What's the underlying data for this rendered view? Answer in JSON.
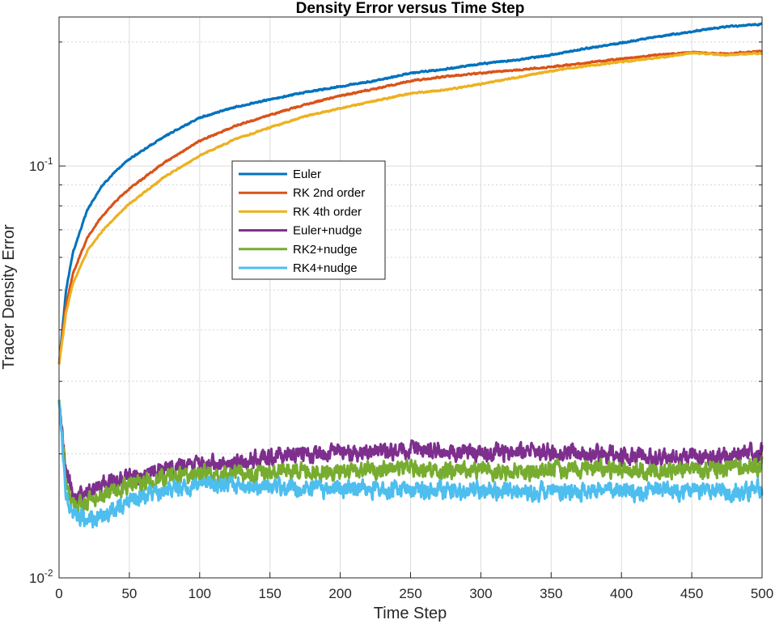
{
  "chart_data": {
    "type": "line",
    "title": "Density Error versus Time Step",
    "xlabel": "Time Step",
    "ylabel": "Tracer Density Error",
    "xlim": [
      0,
      500
    ],
    "ylim": [
      0.01,
      0.23
    ],
    "yscale": "log",
    "grid": true,
    "legend_position": "upper-left-center",
    "x_ticks": [
      "0",
      "50",
      "100",
      "150",
      "200",
      "250",
      "300",
      "350",
      "400",
      "450",
      "500"
    ],
    "y_ticks": [
      {
        "base": "10",
        "exp": "-2",
        "value": 0.01
      },
      {
        "base": "10",
        "exp": "-1",
        "value": 0.1
      }
    ],
    "x": [
      0,
      5,
      10,
      20,
      30,
      40,
      50,
      75,
      100,
      125,
      150,
      175,
      200,
      225,
      250,
      275,
      300,
      325,
      350,
      375,
      400,
      425,
      450,
      475,
      500
    ],
    "series": [
      {
        "name": "Euler",
        "color": "#0072BD",
        "noise": 0.006,
        "values": [
          0.033,
          0.05,
          0.062,
          0.078,
          0.089,
          0.097,
          0.104,
          0.118,
          0.131,
          0.139,
          0.145,
          0.151,
          0.156,
          0.161,
          0.168,
          0.172,
          0.177,
          0.181,
          0.186,
          0.193,
          0.199,
          0.206,
          0.212,
          0.218,
          0.221
        ]
      },
      {
        "name": "RK 2nd order",
        "color": "#D95319",
        "noise": 0.006,
        "values": [
          0.033,
          0.046,
          0.055,
          0.067,
          0.075,
          0.082,
          0.088,
          0.102,
          0.115,
          0.125,
          0.133,
          0.141,
          0.148,
          0.154,
          0.161,
          0.165,
          0.168,
          0.171,
          0.174,
          0.178,
          0.182,
          0.186,
          0.189,
          0.187,
          0.19
        ]
      },
      {
        "name": "RK 4th order",
        "color": "#EDB120",
        "noise": 0.006,
        "values": [
          0.033,
          0.044,
          0.052,
          0.062,
          0.069,
          0.075,
          0.081,
          0.094,
          0.106,
          0.116,
          0.124,
          0.132,
          0.138,
          0.144,
          0.15,
          0.153,
          0.158,
          0.164,
          0.17,
          0.175,
          0.179,
          0.183,
          0.188,
          0.186,
          0.188
        ]
      },
      {
        "name": "Euler+nudge",
        "color": "#7E2F8E",
        "noise": 0.07,
        "values": [
          0.027,
          0.018,
          0.0158,
          0.0162,
          0.0168,
          0.0172,
          0.0176,
          0.0183,
          0.0188,
          0.0192,
          0.0196,
          0.0199,
          0.0201,
          0.0203,
          0.0204,
          0.0203,
          0.0201,
          0.0202,
          0.0203,
          0.0199,
          0.0198,
          0.0196,
          0.0197,
          0.0198,
          0.0204
        ]
      },
      {
        "name": "RK2+nudge",
        "color": "#77AC30",
        "noise": 0.07,
        "values": [
          0.027,
          0.0168,
          0.0148,
          0.0152,
          0.0158,
          0.0163,
          0.0168,
          0.0175,
          0.0178,
          0.0179,
          0.018,
          0.0181,
          0.0182,
          0.0184,
          0.0184,
          0.0182,
          0.0183,
          0.0181,
          0.0183,
          0.0184,
          0.0183,
          0.0182,
          0.0183,
          0.0184,
          0.0188
        ]
      },
      {
        "name": "RK4+nudge",
        "color": "#4DBEEE",
        "noise": 0.07,
        "values": [
          0.027,
          0.0162,
          0.0142,
          0.0138,
          0.014,
          0.0148,
          0.0155,
          0.0163,
          0.0168,
          0.0167,
          0.0166,
          0.0165,
          0.0165,
          0.0164,
          0.0164,
          0.0163,
          0.0164,
          0.0162,
          0.0163,
          0.0162,
          0.0163,
          0.0162,
          0.0163,
          0.0162,
          0.0164
        ]
      }
    ]
  }
}
